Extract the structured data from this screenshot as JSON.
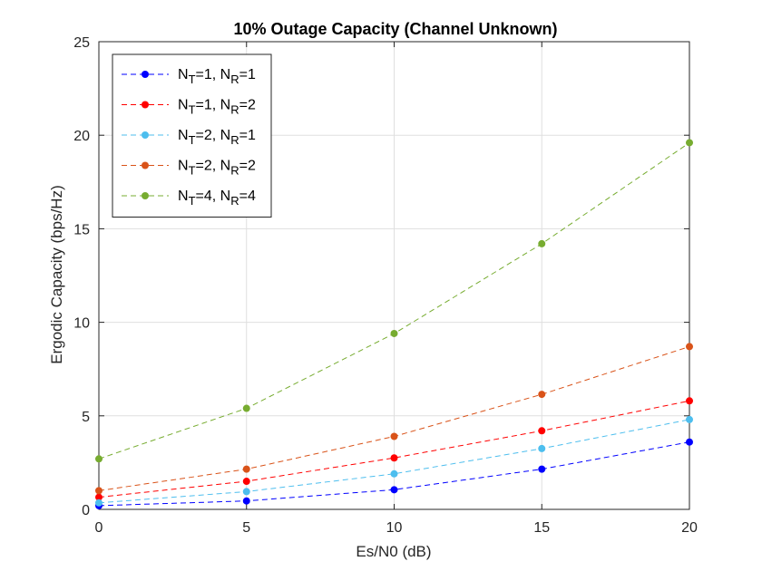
{
  "chart_data": {
    "type": "line",
    "title": "10% Outage Capacity (Channel Unknown)",
    "xlabel": "Es/N0 (dB)",
    "ylabel": "Ergodic Capacity (bps/Hz)",
    "xlim": [
      0,
      20
    ],
    "ylim": [
      0,
      25
    ],
    "xticks": [
      "0",
      "5",
      "10",
      "15",
      "20"
    ],
    "yticks": [
      "0",
      "5",
      "10",
      "15",
      "20",
      "25"
    ],
    "grid": true,
    "legend_position": "top-left",
    "x": [
      0,
      5,
      10,
      15,
      20
    ],
    "series": [
      {
        "legend": {
          "a": "N",
          "as": "T",
          "b": "=1, N",
          "bs": "R",
          "c": "=1"
        },
        "color": "#0000ff",
        "values": [
          0.2,
          0.45,
          1.05,
          2.15,
          3.6
        ]
      },
      {
        "legend": {
          "a": "N",
          "as": "T",
          "b": "=1, N",
          "bs": "R",
          "c": "=2"
        },
        "color": "#ff0000",
        "values": [
          0.65,
          1.5,
          2.75,
          4.2,
          5.8
        ]
      },
      {
        "legend": {
          "a": "N",
          "as": "T",
          "b": "=2, N",
          "bs": "R",
          "c": "=1"
        },
        "color": "#4dbeee",
        "values": [
          0.35,
          0.95,
          1.9,
          3.25,
          4.8
        ]
      },
      {
        "legend": {
          "a": "N",
          "as": "T",
          "b": "=2, N",
          "bs": "R",
          "c": "=2"
        },
        "color": "#d95319",
        "values": [
          1.0,
          2.15,
          3.9,
          6.15,
          8.7
        ]
      },
      {
        "legend": {
          "a": "N",
          "as": "T",
          "b": "=4, N",
          "bs": "R",
          "c": "=4"
        },
        "color": "#77ac30",
        "values": [
          2.7,
          5.4,
          9.4,
          14.2,
          19.6
        ]
      }
    ]
  }
}
